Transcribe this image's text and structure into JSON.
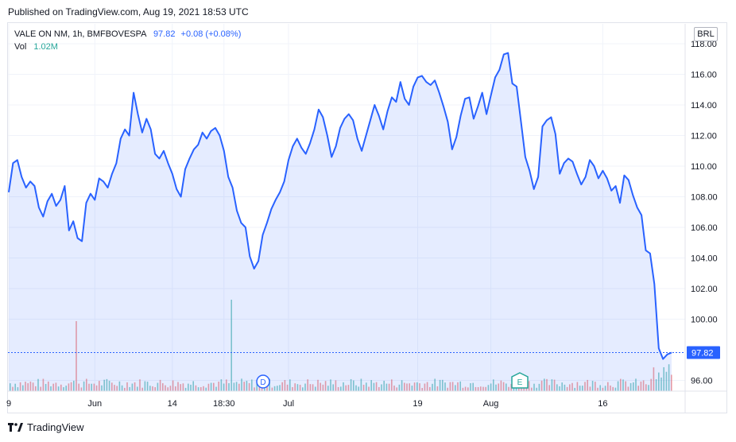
{
  "header": {
    "published": "Published on TradingView.com, Aug 19, 2021 18:53 UTC"
  },
  "legend": {
    "symbol": "VALE ON NM, 1h, BMFBOVESPA",
    "last": "97.82",
    "change": "+0.08 (+0.08%)",
    "vol_label": "Vol",
    "vol_value": "1.02M"
  },
  "currency": "BRL",
  "last_price_label": "97.82",
  "events": {
    "dividend": "D",
    "earnings": "E"
  },
  "footer": {
    "brand": "TradingView"
  },
  "colors": {
    "line": "#2962ff",
    "area": "#d6deff",
    "up_volume": "#26a69a",
    "down_volume": "#ef5350"
  },
  "chart_data": {
    "type": "area",
    "title": "",
    "xlabel": "",
    "ylabel": "",
    "ylim": [
      95.3,
      119.3
    ],
    "y_ticks": [
      "118.00",
      "116.00",
      "114.00",
      "112.00",
      "110.00",
      "108.00",
      "106.00",
      "104.00",
      "102.00",
      "100.00",
      "96.00"
    ],
    "x_ticks": [
      "9",
      "Jun",
      "14",
      "18:30",
      "Jul",
      "19",
      "Aug",
      "16"
    ],
    "grid": true,
    "series": [
      {
        "values": [
          108.3,
          110.2,
          110.4,
          109.3,
          108.6,
          109.0,
          108.7,
          107.3,
          106.7,
          107.7,
          108.2,
          107.4,
          107.8,
          108.7,
          105.8,
          106.4,
          105.3,
          105.1,
          107.6,
          108.2,
          107.8,
          109.2,
          109.0,
          108.6,
          109.5,
          110.2,
          111.8,
          112.4,
          112.0,
          114.8,
          113.4,
          112.2,
          113.1,
          112.4,
          110.8,
          110.5,
          111.0,
          110.2,
          109.5,
          108.5,
          108.0,
          109.8,
          110.5,
          111.1,
          111.4,
          112.2,
          111.8,
          112.3,
          112.5,
          112.0,
          111.0,
          109.3,
          108.6,
          107.1,
          106.3,
          106.0,
          104.1,
          103.3,
          103.8,
          105.5,
          106.3,
          107.2,
          107.8,
          108.3,
          109.0,
          110.4,
          111.3,
          111.8,
          111.2,
          110.8,
          111.5,
          112.4,
          113.7,
          113.2,
          112.0,
          110.6,
          111.3,
          112.5,
          113.1,
          113.4,
          113.0,
          111.8,
          111.0,
          112.0,
          113.0,
          114.0,
          113.3,
          112.4,
          113.6,
          114.5,
          114.2,
          115.5,
          114.4,
          114.0,
          115.2,
          115.8,
          115.9,
          115.5,
          115.3,
          115.6,
          114.8,
          113.9,
          112.9,
          111.1,
          111.9,
          113.3,
          114.4,
          114.5,
          113.1,
          113.9,
          114.8,
          113.4,
          114.6,
          115.8,
          116.3,
          117.3,
          117.4,
          115.4,
          115.2,
          112.9,
          110.6,
          109.7,
          108.5,
          109.3,
          112.6,
          113.0,
          113.2,
          112.1,
          109.5,
          110.2,
          110.5,
          110.3,
          109.5,
          108.8,
          109.3,
          110.4,
          110.0,
          109.2,
          109.7,
          109.2,
          108.4,
          108.7,
          107.6,
          109.4,
          109.1,
          108.1,
          107.3,
          106.8,
          104.5,
          104.3,
          102.3,
          98.1,
          97.4,
          97.7,
          97.82
        ]
      }
    ],
    "volume_spikes": [
      {
        "at": "late May",
        "value": "high"
      },
      {
        "at": "18:30 session",
        "value": "highest"
      }
    ]
  }
}
